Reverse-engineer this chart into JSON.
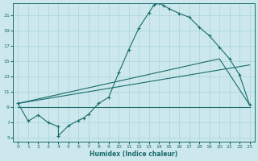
{
  "bg_color": "#cce8ec",
  "grid_color": "#a8d5db",
  "line_color": "#1a6b6b",
  "xlabel": "Humidex (Indice chaleur)",
  "xlim": [
    -0.5,
    23.5
  ],
  "ylim": [
    4.5,
    22.5
  ],
  "yticks": [
    5,
    7,
    9,
    11,
    13,
    15,
    17,
    19,
    21
  ],
  "xticks": [
    0,
    1,
    2,
    3,
    4,
    5,
    6,
    7,
    8,
    9,
    10,
    11,
    12,
    13,
    14,
    15,
    16,
    17,
    18,
    19,
    20,
    21,
    22,
    23
  ],
  "main_x": [
    0,
    1,
    2,
    3,
    4,
    4,
    5,
    6,
    6.5,
    7,
    8,
    9,
    10,
    11,
    12,
    13,
    13.5,
    14,
    14.5,
    15,
    16,
    17,
    18,
    19,
    20,
    21,
    22,
    23
  ],
  "main_y": [
    9.5,
    7.2,
    8.0,
    7.0,
    6.5,
    5.3,
    6.6,
    7.3,
    7.6,
    8.1,
    9.5,
    10.3,
    13.5,
    16.5,
    19.3,
    21.3,
    22.3,
    22.5,
    22.2,
    21.8,
    21.2,
    20.7,
    19.4,
    18.3,
    16.8,
    15.3,
    13.2,
    9.3
  ],
  "line1_x": [
    0,
    20,
    23
  ],
  "line1_y": [
    9.5,
    15.3,
    9.3
  ],
  "line2_x": [
    0,
    23
  ],
  "line2_y": [
    9.5,
    14.5
  ],
  "line3_x": [
    0,
    23
  ],
  "line3_y": [
    9.0,
    9.0
  ]
}
